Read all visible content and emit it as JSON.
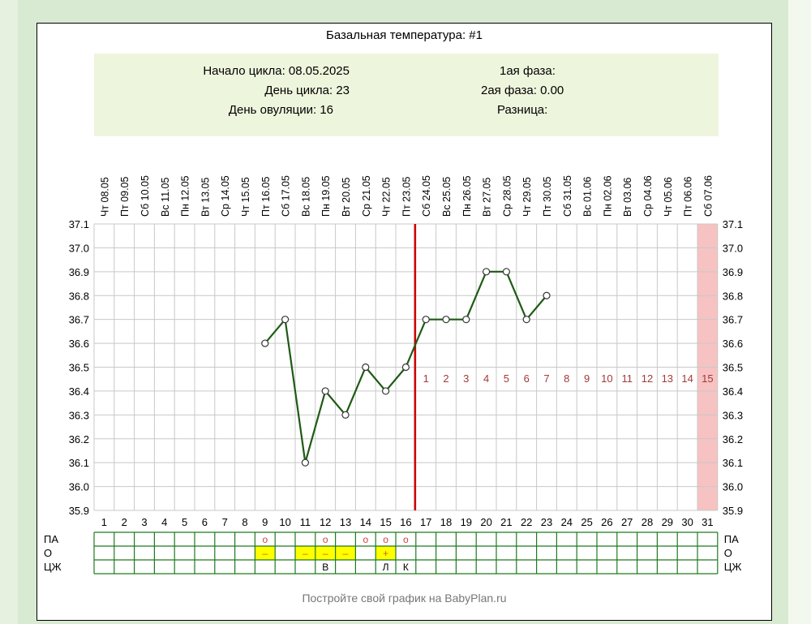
{
  "card": {
    "title": "Базальная температура: #1",
    "info": {
      "cycle_start_label": "Начало цикла:",
      "cycle_start": "08.05.2025",
      "cycle_day_label": "День цикла:",
      "cycle_day": "23",
      "ovulation_day_label": "День овуляции:",
      "ovulation_day": "16",
      "phase1_label": "1ая фаза:",
      "phase1": "",
      "phase2_label": "2ая фаза:",
      "phase2": "0.00",
      "difference_label": "Разница:",
      "difference": ""
    },
    "footer": "Постройте свой график на BabyPlan.ru"
  },
  "chart_data": {
    "type": "line",
    "title": "Базальная температура: #1",
    "ylim": [
      35.9,
      37.1
    ],
    "y_ticks": [
      "35.9",
      "36.0",
      "36.1",
      "36.2",
      "36.3",
      "36.4",
      "36.5",
      "36.6",
      "36.7",
      "36.8",
      "36.9",
      "37.0",
      "37.1"
    ],
    "grid": true,
    "days": [
      1,
      2,
      3,
      4,
      5,
      6,
      7,
      8,
      9,
      10,
      11,
      12,
      13,
      14,
      15,
      16,
      17,
      18,
      19,
      20,
      21,
      22,
      23,
      24,
      25,
      26,
      27,
      28,
      29,
      30,
      31
    ],
    "dates": [
      "Чт 08.05",
      "Пт 09.05",
      "Сб 10.05",
      "Вс 11.05",
      "Пн 12.05",
      "Вт 13.05",
      "Ср 14.05",
      "Чт 15.05",
      "Пт 16.05",
      "Сб 17.05",
      "Вс 18.05",
      "Пн 19.05",
      "Вт 20.05",
      "Ср 21.05",
      "Чт 22.05",
      "Пт 23.05",
      "Сб 24.05",
      "Вс 25.05",
      "Пн 26.05",
      "Вт 27.05",
      "Ср 28.05",
      "Чт 29.05",
      "Пт 30.05",
      "Сб 31.05",
      "Вс 01.06",
      "Пн 02.06",
      "Вт 03.06",
      "Ср 04.06",
      "Чт 05.06",
      "Пт 06.06",
      "Сб 07.06"
    ],
    "series": [
      {
        "x": [
          9,
          10,
          11,
          12,
          13,
          14,
          15,
          16,
          17,
          18,
          19,
          20,
          21,
          22,
          23
        ],
        "values": [
          36.6,
          36.7,
          36.1,
          36.4,
          36.3,
          36.5,
          36.4,
          36.5,
          36.7,
          36.7,
          36.7,
          36.9,
          36.9,
          36.7,
          36.8
        ],
        "color": "#1e5a14"
      }
    ],
    "ovulation_day": 16,
    "ovulation_line_color": "#cc0000",
    "luteal_day_labels": [
      "1",
      "2",
      "3",
      "4",
      "5",
      "6",
      "7",
      "8",
      "9",
      "10",
      "11",
      "12",
      "13",
      "14",
      "15"
    ],
    "luteal_label_value": 36.45,
    "luteal_label_color": "#a33a3a",
    "highlight_day": 31,
    "highlight_color": "#f7c2c2",
    "extra_rows": [
      {
        "label": "ПА",
        "marks": {
          "9": "о",
          "12": "о",
          "14": "о",
          "15": "о",
          "16": "о"
        },
        "mark_color": "#d04040"
      },
      {
        "label": "О",
        "marks": {
          "9": "–",
          "11": "–",
          "12": "–",
          "13": "–",
          "15": "+"
        },
        "fill": [
          "9",
          "11",
          "12",
          "13",
          "15"
        ],
        "fill_color": "#ffff00",
        "mark_color": "#d06000"
      },
      {
        "label": "ЦЖ",
        "marks": {
          "12": "В",
          "15": "Л",
          "16": "К"
        },
        "mark_color": "#000000"
      }
    ],
    "grid_color": "#c8c8c8",
    "table_border_color": "#1f7a1f"
  }
}
